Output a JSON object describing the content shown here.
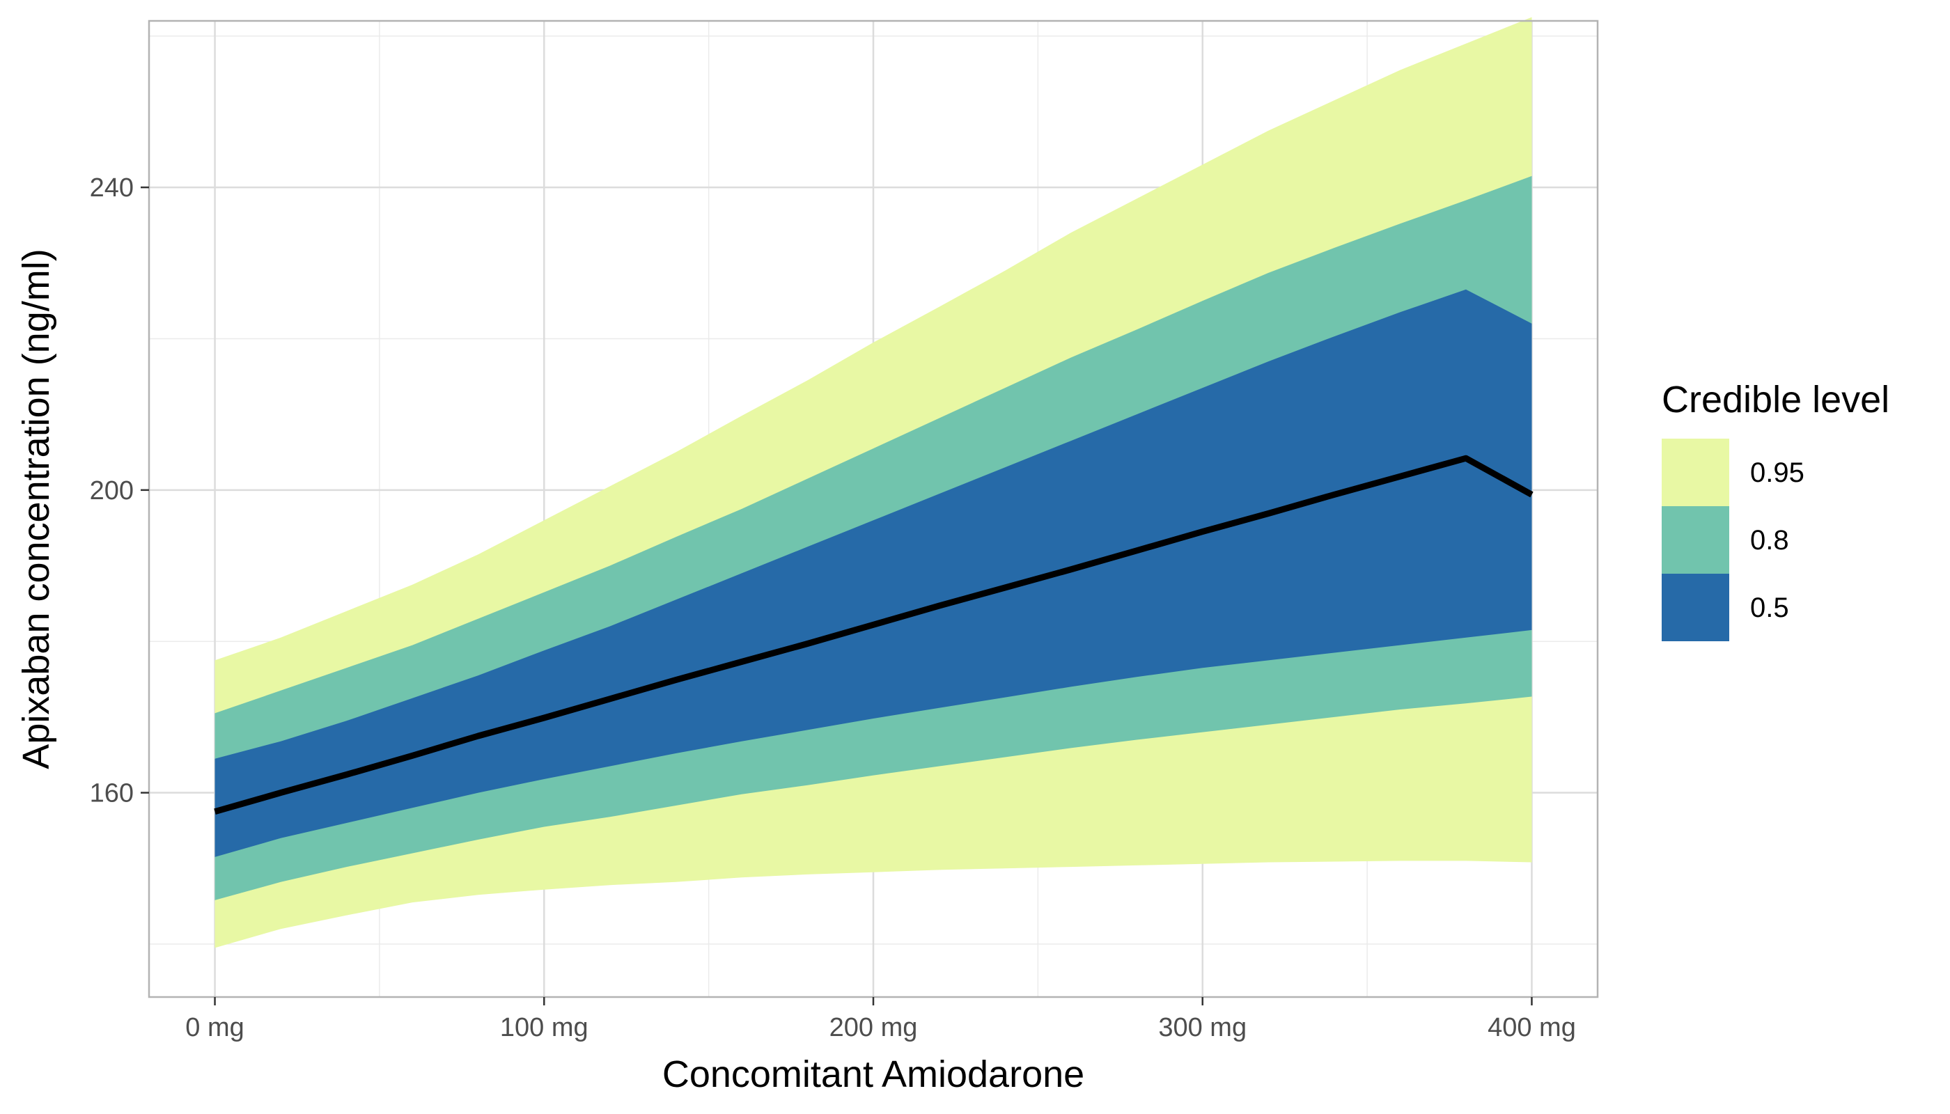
{
  "chart_data": {
    "type": "area",
    "xlabel": "Concomitant Amiodarone",
    "ylabel": "Apixaban concentration (ng/ml)",
    "x_unit": "mg",
    "xlim": [
      -20,
      420
    ],
    "ylim": [
      133,
      262
    ],
    "x_ticks": [
      0,
      100,
      200,
      300,
      400
    ],
    "x_tick_labels": [
      "0 mg",
      "100 mg",
      "200 mg",
      "300 mg",
      "400 mg"
    ],
    "y_ticks": [
      160,
      200,
      240
    ],
    "y_tick_labels": [
      "160",
      "200",
      "240"
    ],
    "grid": true,
    "legend": {
      "title": "Credible level",
      "position": "right",
      "entries": [
        {
          "label": "0.95",
          "color": "#e8f8a4"
        },
        {
          "label": "0.8",
          "color": "#71c4ad"
        },
        {
          "label": "0.5",
          "color": "#266aa8"
        }
      ]
    },
    "x": [
      0,
      20,
      40,
      60,
      80,
      100,
      120,
      140,
      160,
      180,
      200,
      220,
      240,
      260,
      280,
      300,
      320,
      340,
      360,
      380,
      400
    ],
    "median": [
      157.5,
      160.0,
      162.4,
      164.9,
      167.5,
      169.9,
      172.4,
      174.9,
      177.3,
      179.7,
      182.2,
      184.7,
      187.1,
      189.5,
      192.0,
      194.5,
      196.9,
      199.4,
      201.8,
      204.2,
      199.4
    ],
    "bands": [
      {
        "level": "0.95",
        "color": "#e8f8a4",
        "lower": [
          139.5,
          142.0,
          143.8,
          145.5,
          146.5,
          147.2,
          147.8,
          148.2,
          148.8,
          149.2,
          149.5,
          149.8,
          150.0,
          150.2,
          150.4,
          150.6,
          150.8,
          150.9,
          151.0,
          151.0,
          150.8
        ],
        "upper": [
          177.5,
          180.5,
          184.0,
          187.5,
          191.5,
          196.0,
          200.5,
          205.0,
          209.8,
          214.5,
          219.5,
          224.2,
          229.0,
          234.0,
          238.5,
          243.0,
          247.5,
          251.5,
          255.5,
          259.0,
          262.5
        ]
      },
      {
        "level": "0.8",
        "color": "#71c4ad",
        "lower": [
          145.8,
          148.2,
          150.2,
          152.0,
          153.8,
          155.5,
          156.8,
          158.3,
          159.8,
          161.0,
          162.3,
          163.5,
          164.7,
          165.9,
          167.0,
          168.0,
          169.0,
          170.0,
          171.0,
          171.8,
          172.7
        ],
        "upper": [
          170.5,
          173.5,
          176.5,
          179.5,
          183.0,
          186.5,
          190.0,
          193.8,
          197.5,
          201.5,
          205.5,
          209.5,
          213.5,
          217.5,
          221.2,
          225.0,
          228.7,
          232.0,
          235.2,
          238.3,
          241.5
        ]
      },
      {
        "level": "0.5",
        "color": "#266aa8",
        "lower": [
          151.5,
          154.0,
          156.0,
          158.0,
          160.0,
          161.8,
          163.5,
          165.2,
          166.8,
          168.3,
          169.8,
          171.2,
          172.6,
          174.0,
          175.3,
          176.5,
          177.5,
          178.5,
          179.5,
          180.5,
          181.5
        ],
        "upper": [
          164.5,
          166.8,
          169.5,
          172.5,
          175.5,
          178.8,
          182.0,
          185.5,
          189.0,
          192.5,
          196.0,
          199.5,
          203.0,
          206.5,
          210.0,
          213.5,
          217.0,
          220.3,
          223.5,
          226.5,
          222.0
        ]
      }
    ]
  }
}
